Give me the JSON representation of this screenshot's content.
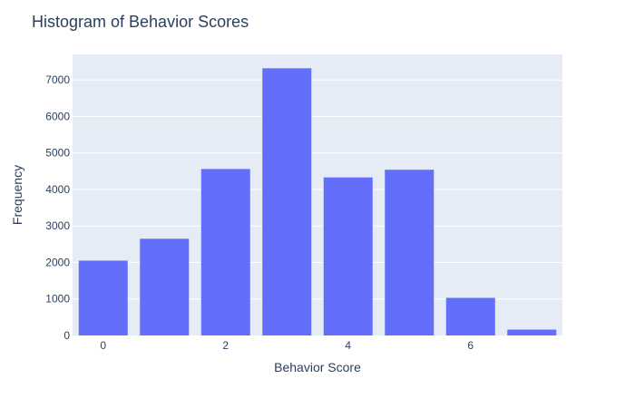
{
  "chart_data": {
    "type": "bar",
    "title": "Histogram of Behavior Scores",
    "xlabel": "Behavior Score",
    "ylabel": "Frequency",
    "x": [
      0,
      1,
      2,
      3,
      4,
      5,
      6,
      7
    ],
    "values": [
      2050,
      2650,
      4560,
      7320,
      4330,
      4540,
      1030,
      160
    ],
    "x_ticks": [
      0,
      2,
      4,
      6
    ],
    "y_ticks": [
      0,
      1000,
      2000,
      3000,
      4000,
      5000,
      6000,
      7000
    ],
    "xlim": [
      -0.5,
      7.5
    ],
    "ylim": [
      0,
      7700
    ],
    "grid": true,
    "colors": {
      "bar": "#636efa",
      "plot_bg": "#e5ecf6",
      "grid": "#ffffff",
      "text": "#2a3f5f"
    }
  }
}
